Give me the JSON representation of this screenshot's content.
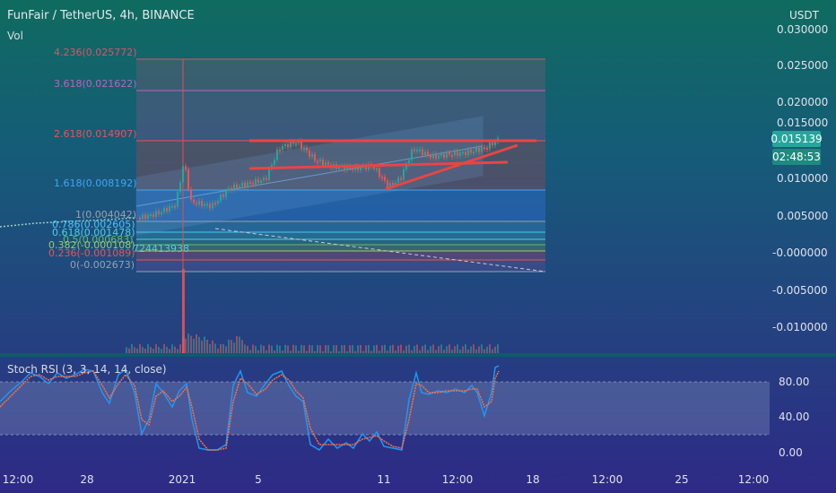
{
  "header": {
    "title": "FunFair / TetherUS, 4h, BINANCE",
    "vol_label": "Vol",
    "currency": "USDT"
  },
  "price_axis": {
    "ticks": [
      "0.030000",
      "0.025000",
      "0.020000",
      "0.015000",
      "0.010000",
      "0.005000",
      "-0.000000",
      "-0.005000",
      "-0.010000"
    ]
  },
  "last_price": {
    "value": "0.015139",
    "countdown": "02:48:53",
    "color": "#26a69a"
  },
  "fib_levels": [
    {
      "label": "4.236(0.025772)",
      "color": "#e0506a"
    },
    {
      "label": "3.618(0.021622)",
      "color": "#c060c0"
    },
    {
      "label": "2.618(0.014907)",
      "color": "#f05050"
    },
    {
      "label": "1.618(0.008192)",
      "color": "#42a5f5"
    },
    {
      "label": "1(0.004042)",
      "color": "#9aa0b0"
    },
    {
      "label": "0.786(0.002605)",
      "color": "#4fc3f7"
    },
    {
      "label": "0.618(0.001478)",
      "color": "#4dd0e1"
    },
    {
      "label": "0.5(0.000683)",
      "color": "#66bb6a"
    },
    {
      "label": "0.382(-0.000108)",
      "color": "#9ccc65"
    },
    {
      "label": "0.236(-0.001089)",
      "color": "#ef5350"
    },
    {
      "label": "0(-0.002673)",
      "color": "#9aa0b0"
    }
  ],
  "overlay_text": "724413938",
  "rsi": {
    "title": "Stoch RSI (3, 3, 14, 14, close)",
    "ticks": [
      "80.00",
      "40.00",
      "0.00"
    ]
  },
  "time_axis": {
    "labels": [
      "12:00",
      "28",
      "2021",
      "5",
      "11",
      "12:00",
      "18",
      "12:00",
      "25",
      "12:00"
    ]
  },
  "colors": {
    "up": "#26a69a",
    "down": "#ef5350",
    "trend": "#e84545",
    "channel": "#6fa8dc"
  }
}
